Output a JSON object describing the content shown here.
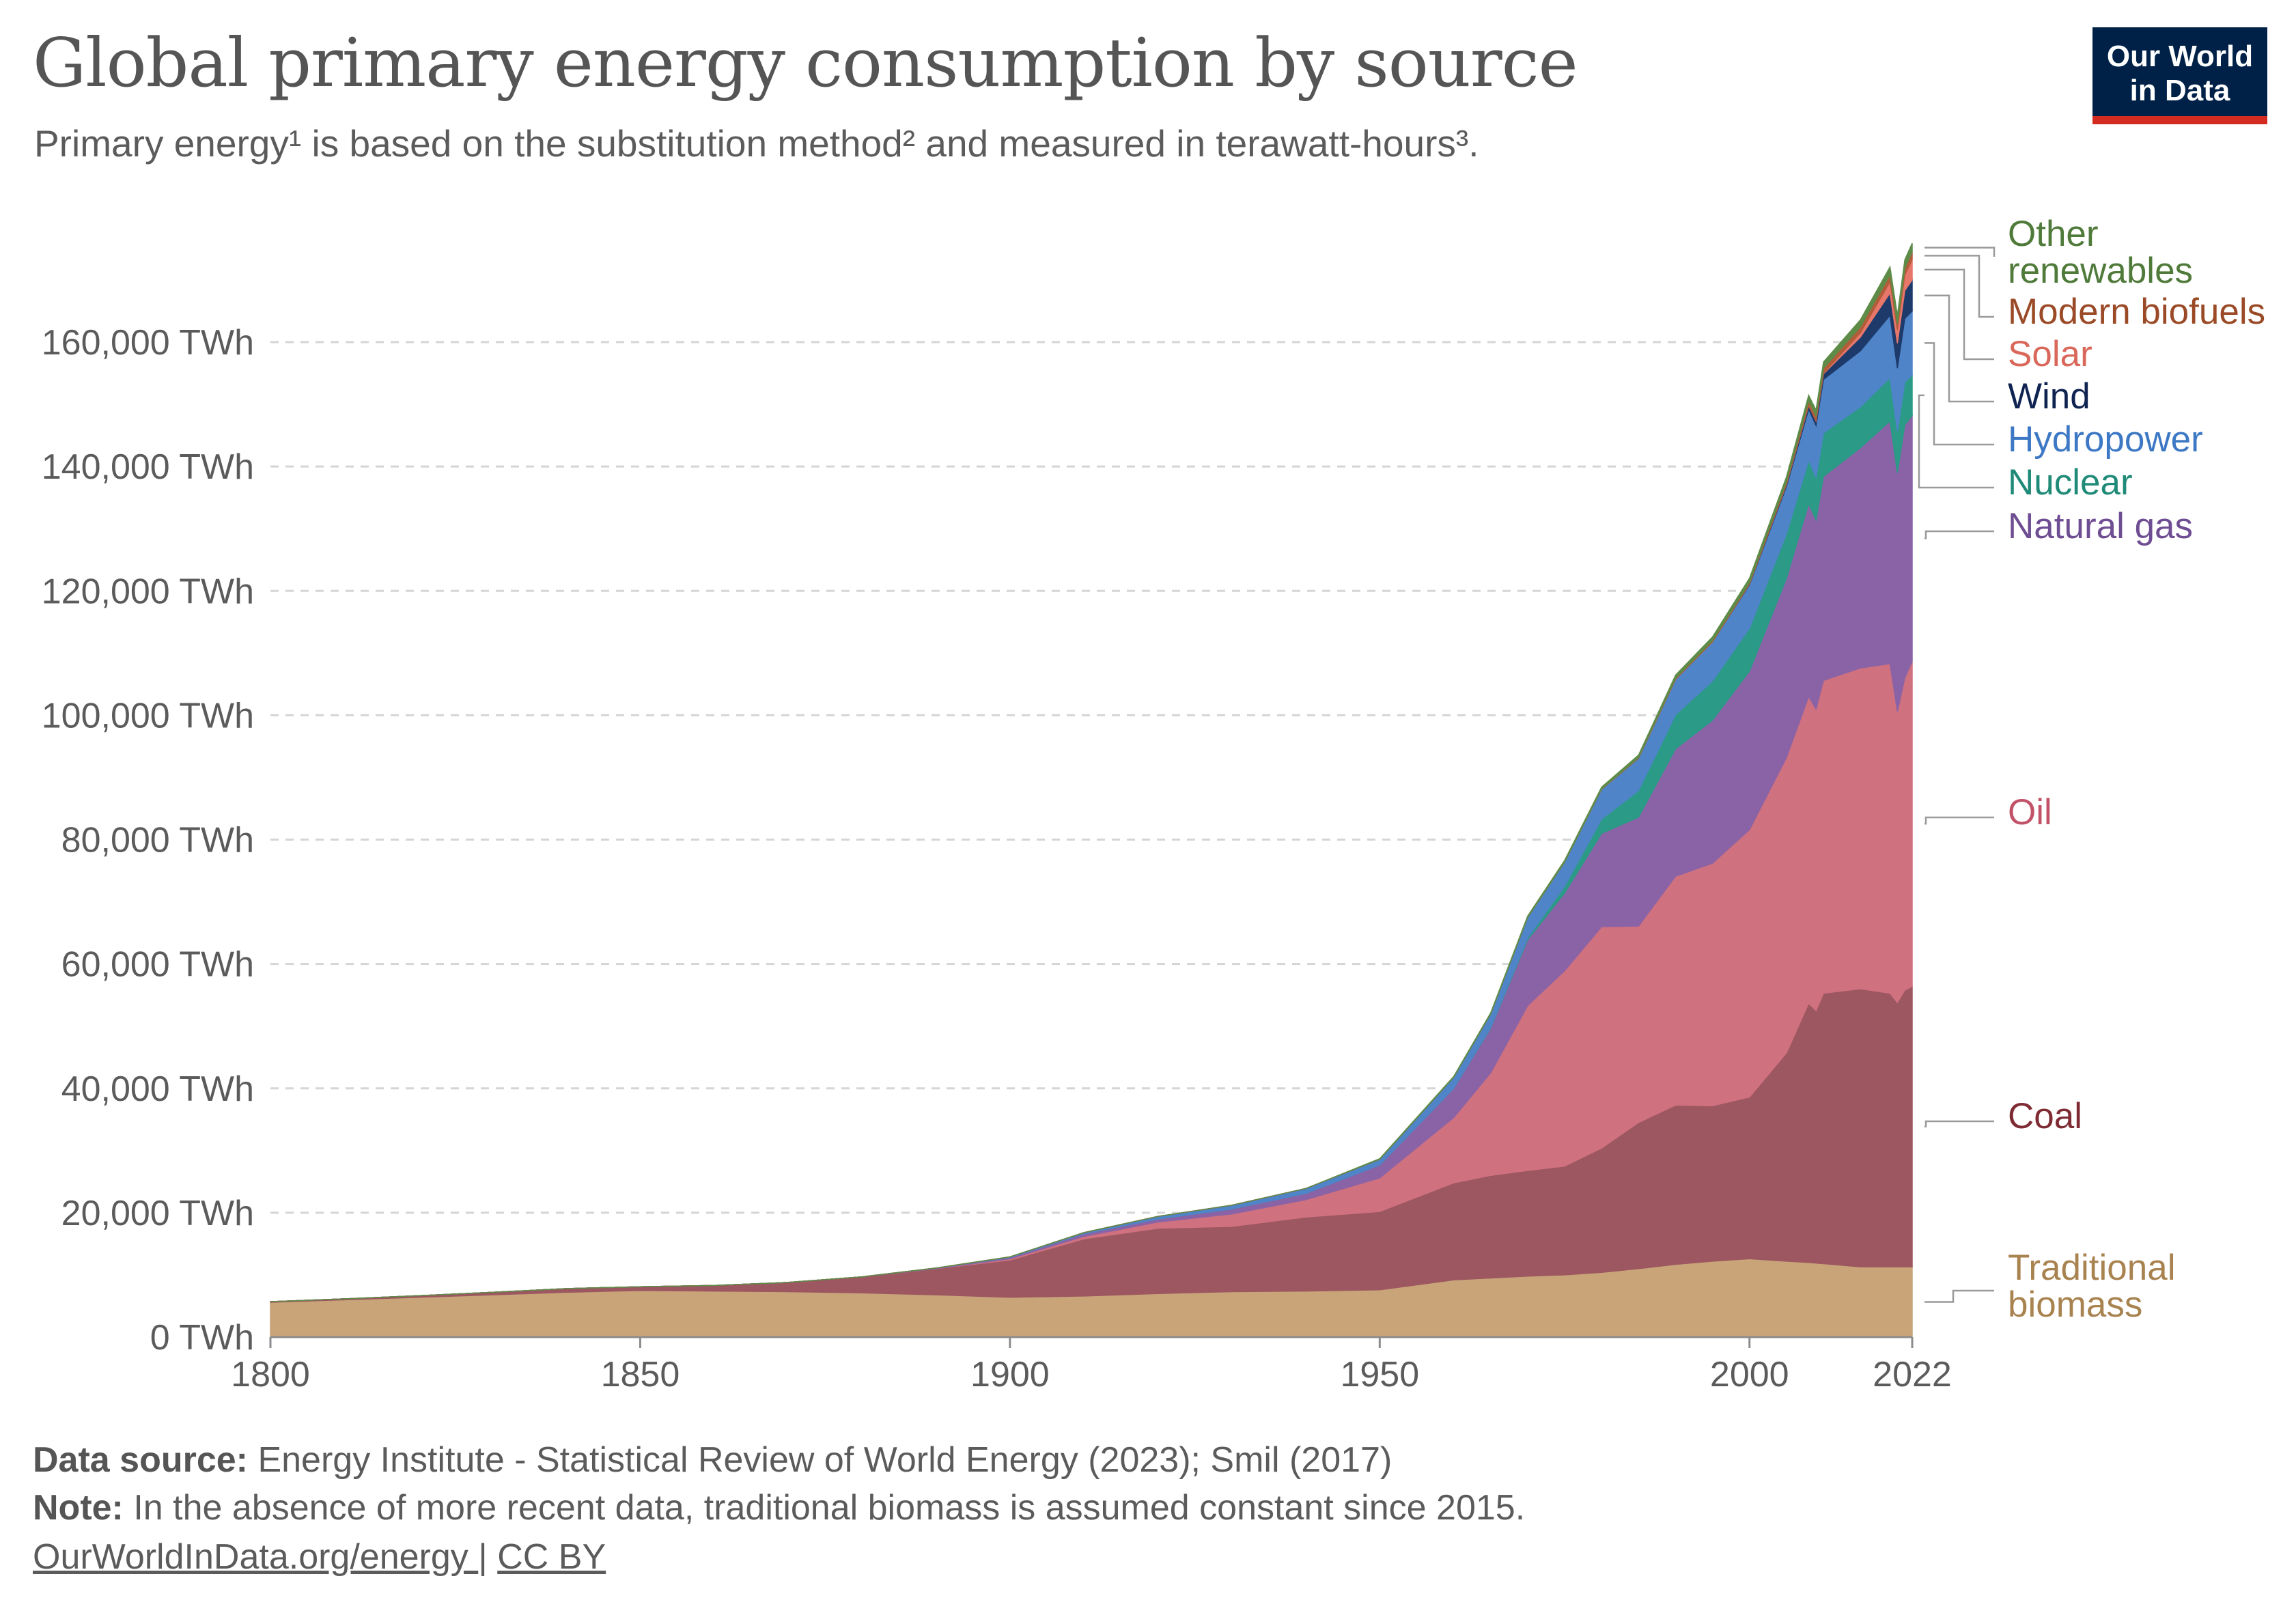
{
  "header": {
    "title": "Global primary energy consumption by source",
    "subtitle": "Primary energy¹ is based on the substitution method² and measured in terawatt-hours³.",
    "logo_line1": "Our World",
    "logo_line2": "in Data"
  },
  "footer": {
    "source_label": "Data source:",
    "source_text": " Energy Institute - Statistical Review of World Energy (2023); Smil (2017)",
    "note_label": "Note:",
    "note_text": " In the absence of more recent data, traditional biomass is assumed constant since 2015.",
    "link_text": "OurWorldInData.org/energy ",
    "separator": " | ",
    "license": "CC BY"
  },
  "colors": {
    "traditional_biomass": "#c9a479",
    "coal": "#9c5761",
    "oil": "#d0717f",
    "natural_gas": "#8a63a6",
    "nuclear": "#2b9a87",
    "hydropower": "#4f84c8",
    "wind": "#1d3a6b",
    "solar": "#e6776a",
    "modern_biofuels": "#b35c3a",
    "other_renewables": "#5e8c48"
  },
  "chart_data": {
    "type": "area",
    "stacked": true,
    "ylim": [
      0,
      180000
    ],
    "xlim": [
      1800,
      2022
    ],
    "y_ticks": [
      0,
      20000,
      40000,
      60000,
      80000,
      100000,
      120000,
      140000,
      160000
    ],
    "y_tick_labels": [
      "0 TWh",
      "20,000 TWh",
      "40,000 TWh",
      "60,000 TWh",
      "80,000 TWh",
      "100,000 TWh",
      "120,000 TWh",
      "140,000 TWh",
      "160,000 TWh"
    ],
    "x_ticks": [
      1800,
      1850,
      1900,
      1950,
      2000,
      2022
    ],
    "x_tick_labels": [
      "1800",
      "1850",
      "1900",
      "1950",
      "2000",
      "2022"
    ],
    "grid": true,
    "legend_position": "right",
    "x": [
      1800,
      1810,
      1820,
      1830,
      1840,
      1850,
      1860,
      1870,
      1880,
      1890,
      1900,
      1910,
      1920,
      1930,
      1940,
      1950,
      1960,
      1965,
      1970,
      1975,
      1980,
      1985,
      1990,
      1995,
      2000,
      2005,
      2008,
      2009,
      2010,
      2015,
      2019,
      2020,
      2021,
      2022
    ],
    "series": [
      {
        "name": "Traditional biomass",
        "key": "traditional_biomass",
        "values": [
          5600,
          6000,
          6400,
          6800,
          7200,
          7500,
          7400,
          7300,
          7100,
          6800,
          6400,
          6600,
          7000,
          7300,
          7400,
          7600,
          9200,
          9500,
          9800,
          10000,
          10400,
          11000,
          11700,
          12200,
          12600,
          12200,
          12000,
          11900,
          11800,
          11300,
          11300,
          11300,
          11300,
          11300
        ]
      },
      {
        "name": "Coal",
        "key": "coal",
        "values": [
          100,
          150,
          250,
          400,
          600,
          600,
          900,
          1500,
          2600,
          4200,
          6000,
          9200,
          10500,
          10500,
          11900,
          12600,
          15600,
          16500,
          17000,
          17500,
          20000,
          23500,
          25600,
          25000,
          26000,
          33500,
          41700,
          40600,
          43500,
          44700,
          44000,
          42500,
          44500,
          45100
        ]
      },
      {
        "name": "Oil",
        "key": "oil",
        "values": [
          0,
          0,
          0,
          0,
          0,
          0,
          0,
          0,
          0,
          0,
          200,
          400,
          1000,
          2000,
          2800,
          5400,
          10500,
          16500,
          26500,
          31400,
          35600,
          31600,
          36800,
          39000,
          43000,
          47500,
          49300,
          48500,
          50300,
          51600,
          53000,
          46800,
          50200,
          52300
        ]
      },
      {
        "name": "Natural gas",
        "key": "natural_gas",
        "values": [
          0,
          0,
          0,
          0,
          0,
          0,
          0,
          0,
          0,
          100,
          200,
          400,
          500,
          800,
          1000,
          2100,
          4700,
          7200,
          10600,
          12500,
          15000,
          17500,
          20500,
          23000,
          25500,
          28800,
          31000,
          30400,
          32800,
          35400,
          39000,
          38400,
          40700,
          39500
        ]
      },
      {
        "name": "Nuclear",
        "key": "nuclear",
        "values": [
          0,
          0,
          0,
          0,
          0,
          0,
          0,
          0,
          0,
          0,
          0,
          0,
          0,
          0,
          0,
          0,
          0,
          100,
          300,
          1100,
          2300,
          4300,
          5500,
          6300,
          6900,
          7200,
          7000,
          6900,
          7000,
          6600,
          7000,
          6700,
          6900,
          6500
        ]
      },
      {
        "name": "Hydropower",
        "key": "hydropower",
        "values": [
          0,
          0,
          0,
          0,
          0,
          0,
          0,
          0,
          0,
          0,
          100,
          200,
          400,
          600,
          800,
          900,
          1800,
          2200,
          3300,
          3900,
          4800,
          5200,
          5700,
          6300,
          7000,
          7600,
          8200,
          8300,
          8600,
          9000,
          10000,
          10100,
          10200,
          10300
        ]
      },
      {
        "name": "Wind",
        "key": "wind",
        "values": [
          0,
          0,
          0,
          0,
          0,
          0,
          0,
          0,
          0,
          0,
          0,
          0,
          0,
          0,
          0,
          0,
          0,
          0,
          0,
          0,
          0,
          0,
          0,
          0,
          100,
          300,
          600,
          700,
          900,
          2200,
          3600,
          4000,
          4500,
          5000
        ]
      },
      {
        "name": "Solar",
        "key": "solar",
        "values": [
          0,
          0,
          0,
          0,
          0,
          0,
          0,
          0,
          0,
          0,
          0,
          0,
          0,
          0,
          0,
          0,
          0,
          0,
          0,
          0,
          0,
          0,
          0,
          0,
          0,
          0,
          50,
          70,
          100,
          700,
          1800,
          2200,
          2500,
          3300
        ]
      },
      {
        "name": "Modern biofuels",
        "key": "modern_biofuels",
        "values": [
          0,
          0,
          0,
          0,
          0,
          0,
          0,
          0,
          0,
          0,
          0,
          0,
          0,
          0,
          0,
          0,
          0,
          0,
          0,
          0,
          50,
          100,
          150,
          200,
          250,
          450,
          700,
          750,
          800,
          950,
          1100,
          1000,
          1100,
          1200
        ]
      },
      {
        "name": "Other renewables",
        "key": "other_renewables",
        "values": [
          0,
          0,
          0,
          0,
          0,
          0,
          0,
          0,
          0,
          0,
          0,
          0,
          0,
          0,
          0,
          100,
          100,
          150,
          200,
          250,
          300,
          400,
          500,
          600,
          700,
          800,
          900,
          950,
          1000,
          1150,
          1300,
          1300,
          1350,
          1400
        ]
      }
    ],
    "legend_lines": [
      {
        "key": "other_renewables",
        "lines": [
          "Other",
          "renewables"
        ]
      },
      {
        "key": "modern_biofuels",
        "lines": [
          "Modern biofuels"
        ]
      },
      {
        "key": "solar",
        "lines": [
          "Solar"
        ]
      },
      {
        "key": "wind",
        "lines": [
          "Wind"
        ]
      },
      {
        "key": "hydropower",
        "lines": [
          "Hydropower"
        ]
      },
      {
        "key": "nuclear",
        "lines": [
          "Nuclear"
        ]
      },
      {
        "key": "natural_gas",
        "lines": [
          "Natural gas"
        ]
      },
      {
        "key": "oil",
        "lines": [
          "Oil"
        ]
      },
      {
        "key": "coal",
        "lines": [
          "Coal"
        ]
      },
      {
        "key": "traditional_biomass",
        "lines": [
          "Traditional",
          "biomass"
        ]
      }
    ],
    "legend_text_colors": {
      "other_renewables": "#4f7a3a",
      "modern_biofuels": "#9a4a26",
      "solar": "#d9675a",
      "wind": "#0f2350",
      "hydropower": "#3d78c4",
      "nuclear": "#1f8a77",
      "natural_gas": "#6f4d93",
      "oil": "#c25267",
      "coal": "#7e2b34",
      "traditional_biomass": "#a8824f"
    }
  }
}
